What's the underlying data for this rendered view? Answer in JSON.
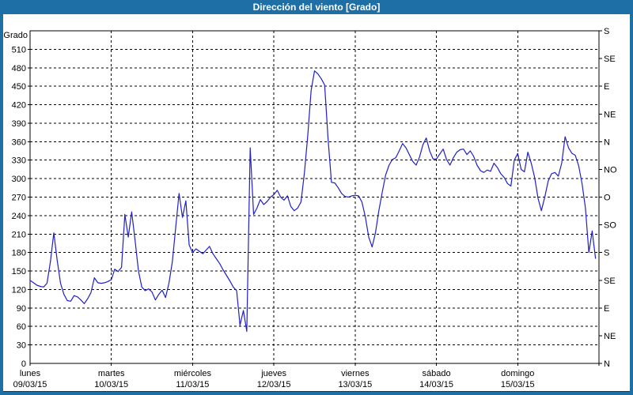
{
  "title": "Dirección del viento [Grado]",
  "window": {
    "frame_color": "#1d6fa5",
    "title_text_color": "#ffffff",
    "background_color": "#ffffff"
  },
  "chart_data": {
    "type": "line",
    "title": "Dirección del viento [Grado]",
    "grid": {
      "style": "dashed",
      "color": "#000000",
      "horizontal_step_deg": 30,
      "vertical_step": "1 day"
    },
    "line_color": "#2020c8",
    "legend": "none",
    "y_left": {
      "label": "Grado",
      "min": 0,
      "max": 540,
      "tick_step": 30,
      "labeled_ticks": [
        0,
        30,
        60,
        90,
        120,
        150,
        180,
        210,
        240,
        270,
        300,
        330,
        360,
        390,
        420,
        450,
        480,
        510
      ]
    },
    "y_right": {
      "tick_step_deg": 45,
      "labels_top_to_bottom": [
        "S",
        "SE",
        "E",
        "NE",
        "N",
        "NO",
        "O",
        "SO",
        "S",
        "SE",
        "E",
        "NE",
        "N"
      ]
    },
    "x_axis_note": "7 days, labels centered on each day's 00:00 tick",
    "sampling": "approx. hourly (24 values per day, 00:00-23:00)",
    "days": [
      {
        "weekday": "lunes",
        "date": "09/03/15",
        "values_deg": [
          135,
          131,
          127,
          125,
          124,
          130,
          165,
          212,
          168,
          130,
          112,
          102,
          101,
          110,
          108,
          103,
          97,
          105,
          115,
          139,
          131,
          130,
          131,
          133
        ]
      },
      {
        "weekday": "martes",
        "date": "10/03/15",
        "values_deg": [
          136,
          153,
          149,
          156,
          242,
          205,
          246,
          200,
          150,
          124,
          118,
          121,
          116,
          103,
          112,
          119,
          107,
          130,
          165,
          220,
          276,
          237,
          264,
          192
        ]
      },
      {
        "weekday": "miércoles",
        "date": "11/03/15",
        "values_deg": [
          180,
          186,
          182,
          178,
          184,
          190,
          178,
          170,
          162,
          152,
          143,
          134,
          124,
          118,
          62,
          86,
          52,
          350,
          242,
          252,
          266,
          258,
          263,
          270
        ]
      },
      {
        "weekday": "jueves",
        "date": "12/03/15",
        "values_deg": [
          274,
          281,
          270,
          265,
          272,
          255,
          248,
          252,
          262,
          309,
          369,
          443,
          475,
          470,
          462,
          452,
          365,
          294,
          293,
          285,
          276,
          271,
          270,
          272
        ]
      },
      {
        "weekday": "viernes",
        "date": "13/03/15",
        "values_deg": [
          273,
          272,
          262,
          238,
          205,
          189,
          212,
          248,
          278,
          306,
          322,
          331,
          334,
          345,
          357,
          350,
          339,
          328,
          322,
          335,
          355,
          366,
          345,
          332
        ]
      },
      {
        "weekday": "sábado",
        "date": "14/03/15",
        "values_deg": [
          332,
          340,
          348,
          331,
          322,
          334,
          343,
          347,
          348,
          339,
          345,
          336,
          322,
          313,
          310,
          314,
          312,
          325,
          318,
          308,
          302,
          292,
          288,
          330
        ]
      },
      {
        "weekday": "domingo",
        "date": "15/03/15",
        "values_deg": [
          341,
          315,
          311,
          343,
          325,
          302,
          268,
          248,
          270,
          296,
          308,
          310,
          304,
          325,
          368,
          350,
          341,
          338,
          321,
          292,
          252,
          180,
          215,
          170
        ]
      }
    ]
  }
}
